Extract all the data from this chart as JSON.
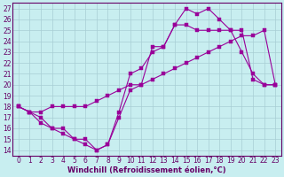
{
  "xlabel": "Windchill (Refroidissement éolien,°C)",
  "bg_color": "#c8eef0",
  "line_color": "#990099",
  "xlim": [
    -0.5,
    23.5
  ],
  "ylim": [
    13.5,
    27.5
  ],
  "xticks": [
    0,
    1,
    2,
    3,
    4,
    5,
    6,
    7,
    8,
    9,
    10,
    11,
    12,
    13,
    14,
    15,
    16,
    17,
    18,
    19,
    20,
    21,
    22,
    23
  ],
  "yticks": [
    14,
    15,
    16,
    17,
    18,
    19,
    20,
    21,
    22,
    23,
    24,
    25,
    26,
    27
  ],
  "line1_x": [
    0,
    1,
    2,
    3,
    4,
    5,
    6,
    7,
    8,
    9,
    10,
    11,
    12,
    13,
    14,
    15,
    16,
    17,
    18,
    19,
    20,
    21,
    22,
    23
  ],
  "line1_y": [
    18,
    17.5,
    17.5,
    18,
    18,
    18,
    18,
    18.5,
    19,
    19.5,
    20,
    20,
    20.5,
    21,
    21.5,
    22,
    22.5,
    23,
    23.5,
    24,
    24.5,
    24.5,
    25,
    20
  ],
  "line2_x": [
    0,
    1,
    2,
    3,
    4,
    5,
    6,
    7,
    8,
    9,
    10,
    11,
    12,
    13,
    14,
    15,
    16,
    17,
    18,
    19,
    20,
    21,
    22,
    23
  ],
  "line2_y": [
    18,
    17.5,
    17,
    16,
    16,
    15,
    15,
    14,
    14.5,
    17.5,
    21,
    21.5,
    23,
    23.5,
    25.5,
    25.5,
    25,
    25,
    25,
    25,
    25,
    20.5,
    20,
    20
  ],
  "line3_x": [
    0,
    1,
    2,
    3,
    4,
    5,
    6,
    7,
    8,
    9,
    10,
    11,
    12,
    13,
    14,
    15,
    16,
    17,
    18,
    19,
    20,
    21,
    22,
    23
  ],
  "line3_y": [
    18,
    17.5,
    16.5,
    16,
    15.5,
    15,
    14.5,
    14,
    14.5,
    17,
    19.5,
    20,
    23.5,
    23.5,
    25.5,
    27,
    26.5,
    27,
    26,
    25,
    23,
    21,
    20,
    20
  ]
}
